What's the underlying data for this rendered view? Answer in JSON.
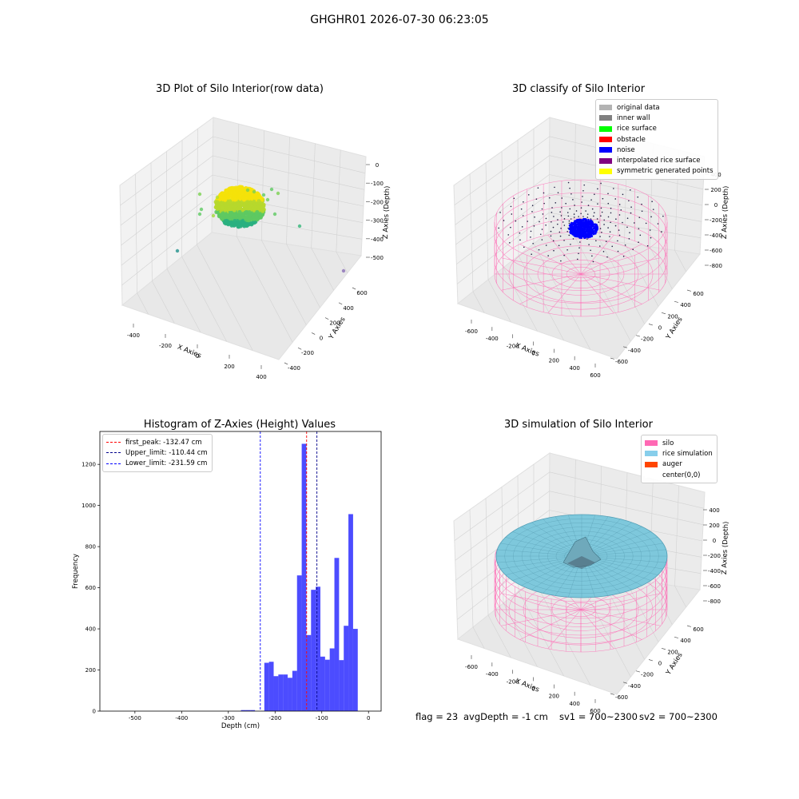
{
  "figure_title": "GHGHR01 2026-07-30 06:23:05",
  "panels": {
    "raw": {
      "title": "3D Plot of Silo Interior(row data)",
      "xlabel": "X Axies",
      "ylabel": "Y Axies",
      "zlabel": "Z Axies (Depth)",
      "xticks": [
        "-400",
        "-200",
        "0",
        "200",
        "400"
      ],
      "yticks": [
        "-400",
        "-200",
        "0",
        "200",
        "400",
        "600"
      ],
      "zticks": [
        "0",
        "-100",
        "-200",
        "-300",
        "-400",
        "-500"
      ]
    },
    "classify": {
      "title": "3D classify of Silo Interior",
      "xlabel": "X Axies",
      "ylabel": "Y Axies",
      "zlabel": "Z Axies (Depth)",
      "xticks": [
        "-600",
        "-400",
        "-200",
        "0",
        "200",
        "400",
        "600"
      ],
      "yticks": [
        "-600",
        "-400",
        "-200",
        "0",
        "200",
        "400",
        "600"
      ],
      "zticks": [
        "400",
        "200",
        "0",
        "-200",
        "-400",
        "-600",
        "-800"
      ],
      "legend": [
        {
          "label": "original data",
          "color": "#b3b3b3"
        },
        {
          "label": "inner wall",
          "color": "#808080"
        },
        {
          "label": "rice surface",
          "color": "#00ff00"
        },
        {
          "label": "obstacle",
          "color": "#ff0000"
        },
        {
          "label": "noise",
          "color": "#0000ff"
        },
        {
          "label": "interpolated rice surface",
          "color": "#800080"
        },
        {
          "label": "symmetric generated points",
          "color": "#ffff00"
        }
      ]
    },
    "simulation": {
      "title": "3D simulation of Silo Interior",
      "xlabel": "X Axies",
      "ylabel": "Y Axies",
      "zlabel": "Z Axies (Depth)",
      "xticks": [
        "-600",
        "-400",
        "-200",
        "0",
        "200",
        "400",
        "600"
      ],
      "yticks": [
        "-600",
        "-400",
        "-200",
        "0",
        "200",
        "400",
        "600"
      ],
      "zticks": [
        "400",
        "200",
        "0",
        "-200",
        "-400",
        "-600",
        "-800"
      ],
      "legend": [
        {
          "label": "silo",
          "color": "#ff69b4"
        },
        {
          "label": "rice simulation",
          "color": "#87ceeb"
        },
        {
          "label": "auger",
          "color": "#ff4500"
        },
        {
          "label": "center(0,0)",
          "color": "#ffffff"
        }
      ]
    }
  },
  "footer": {
    "flag": "flag = 23",
    "avg_depth": "avgDepth = -1 cm",
    "sv1": "sv1 = 700~2300",
    "sv2": "sv2 = 700~2300"
  },
  "chart_data": [
    {
      "type": "bar",
      "title": "Histogram of Z-Axies (Height) Values",
      "xlabel": "Depth (cm)",
      "ylabel": "Frequency",
      "xlim": [
        -575,
        27
      ],
      "ylim": [
        0,
        1360
      ],
      "xticks": [
        -500,
        -400,
        -300,
        -200,
        -100,
        0
      ],
      "yticks": [
        0,
        200,
        400,
        600,
        800,
        1000,
        1200
      ],
      "bar_color": "#0000ff",
      "bin_width": 10,
      "bins": [
        {
          "x0": -273,
          "value": 5
        },
        {
          "x0": -263,
          "value": 5
        },
        {
          "x0": -253,
          "value": 5
        },
        {
          "x0": -223,
          "value": 235
        },
        {
          "x0": -213,
          "value": 240
        },
        {
          "x0": -203,
          "value": 170
        },
        {
          "x0": -193,
          "value": 178
        },
        {
          "x0": -183,
          "value": 178
        },
        {
          "x0": -173,
          "value": 162
        },
        {
          "x0": -163,
          "value": 196
        },
        {
          "x0": -153,
          "value": 660
        },
        {
          "x0": -143,
          "value": 1300
        },
        {
          "x0": -133,
          "value": 370
        },
        {
          "x0": -123,
          "value": 590
        },
        {
          "x0": -113,
          "value": 605
        },
        {
          "x0": -103,
          "value": 265
        },
        {
          "x0": -93,
          "value": 250
        },
        {
          "x0": -83,
          "value": 305
        },
        {
          "x0": -73,
          "value": 745
        },
        {
          "x0": -63,
          "value": 248
        },
        {
          "x0": -53,
          "value": 415
        },
        {
          "x0": -43,
          "value": 958
        },
        {
          "x0": -33,
          "value": 400
        }
      ],
      "lines": [
        {
          "label": "first_peak: -132.47 cm",
          "x": -132.47,
          "color": "#ff0000"
        },
        {
          "label": "Upper_limit: -110.44 cm",
          "x": -110.44,
          "color": "#00008b"
        },
        {
          "label": "Lower_limit: -231.59 cm",
          "x": -231.59,
          "color": "#0000ff"
        }
      ],
      "legend_position": "upper left"
    }
  ]
}
